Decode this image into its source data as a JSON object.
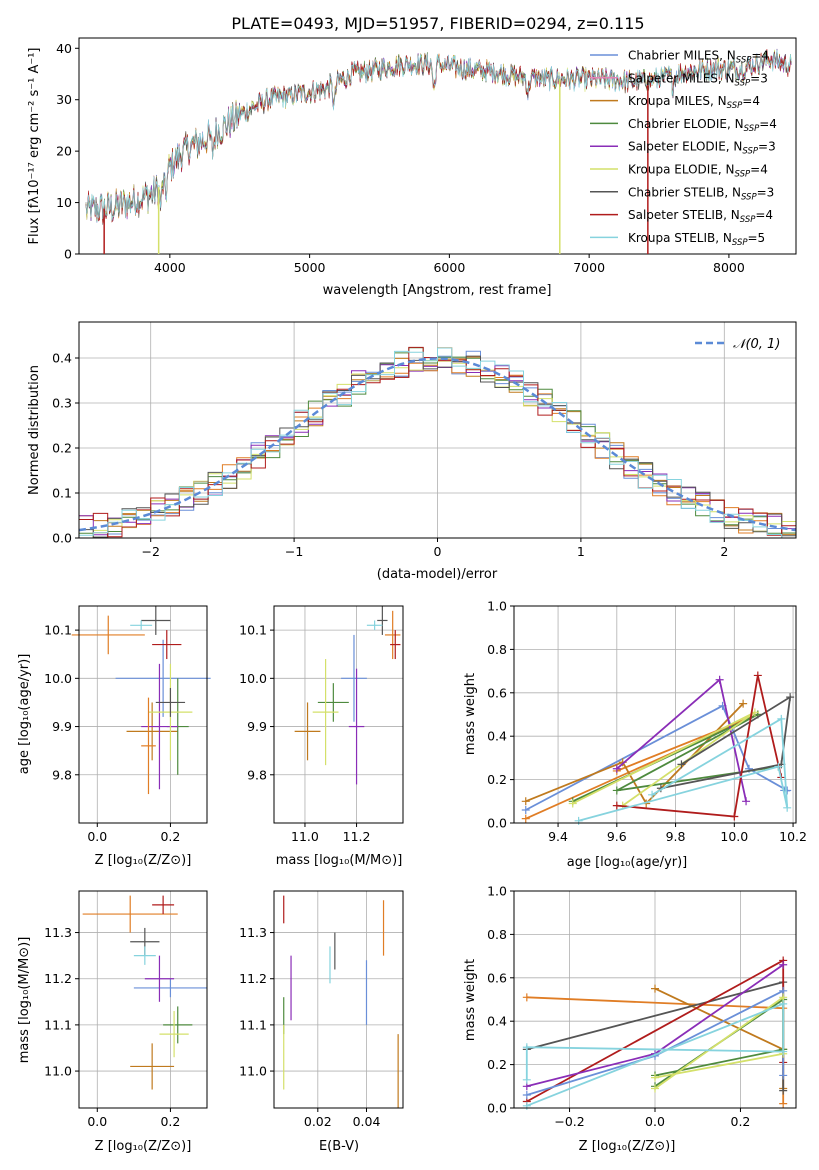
{
  "title": "PLATE=0493, MJD=51957, FIBERID=0294, z=0.115",
  "colors": {
    "Chabrier MILES": "#6a8fd8",
    "Salpeter MILES": "#e07d25",
    "Kroupa MILES": "#c07a1e",
    "Chabrier ELODIE": "#4e8a3e",
    "Salpeter ELODIE": "#8a2db7",
    "Kroupa ELODIE": "#d4e06a",
    "Chabrier STELIB": "#555555",
    "Salpeter STELIB": "#b01c1c",
    "Kroupa STELIB": "#86d3de",
    "pink": "#e484b8",
    "normal": "#5b8ad6"
  },
  "chart_data": [
    {
      "type": "line",
      "panel": "spectrum",
      "title": "PLATE=0493, MJD=51957, FIBERID=0294, z=0.115",
      "xlabel": "wavelength [Angstrom, rest frame]",
      "ylabel": "Flux [fλ10⁻¹⁷ erg cm⁻² s⁻¹ A⁻¹]",
      "xlim": [
        3350,
        8480
      ],
      "ylim": [
        0,
        42
      ],
      "xticks": [
        4000,
        5000,
        6000,
        7000,
        8000
      ],
      "yticks": [
        0,
        10,
        20,
        30,
        40
      ],
      "legend": [
        {
          "label": "Chabrier MILES, N",
          "sub": "SSP",
          "tail": "=4",
          "color": "#6a8fd8"
        },
        {
          "label": "Salpeter MILES, N",
          "sub": "SSP",
          "tail": "=3",
          "color": "#e484b8"
        },
        {
          "label": "Kroupa MILES, N",
          "sub": "SSP",
          "tail": "=4",
          "color": "#c07a1e"
        },
        {
          "label": "Chabrier ELODIE, N",
          "sub": "SSP",
          "tail": "=4",
          "color": "#4e8a3e"
        },
        {
          "label": "Salpeter ELODIE, N",
          "sub": "SSP",
          "tail": "=3",
          "color": "#8a2db7"
        },
        {
          "label": "Kroupa ELODIE, N",
          "sub": "SSP",
          "tail": "=4",
          "color": "#d4e06a"
        },
        {
          "label": "Chabrier STELIB, N",
          "sub": "SSP",
          "tail": "=3",
          "color": "#555555"
        },
        {
          "label": "Salpeter STELIB, N",
          "sub": "SSP",
          "tail": "=4",
          "color": "#b01c1c"
        },
        {
          "label": "Kroupa STELIB, N",
          "sub": "SSP",
          "tail": "=5",
          "color": "#86d3de"
        }
      ],
      "legend_position": "top-right",
      "continuum": {
        "x": [
          3400,
          3600,
          3800,
          3900,
          4000,
          4100,
          4300,
          4500,
          4700,
          4900,
          5100,
          5300,
          5500,
          5700,
          5900,
          6100,
          6300,
          6500,
          6700,
          6900,
          7100,
          7300,
          7500,
          7700,
          7900,
          8100,
          8300,
          8450
        ],
        "y": [
          8.5,
          9,
          11,
          12,
          17,
          20,
          23,
          27,
          30,
          31,
          32,
          35,
          36,
          37,
          37,
          36,
          35.5,
          34.5,
          34,
          34,
          34,
          33.5,
          34,
          35.5,
          36,
          36,
          38,
          36.5
        ]
      },
      "drops": [
        {
          "x": 3530,
          "series": "Salpeter STELIB"
        },
        {
          "x": 3920,
          "series": "Kroupa ELODIE"
        },
        {
          "x": 6790,
          "series": "Kroupa ELODIE"
        },
        {
          "x": 7420,
          "series": "Salpeter STELIB"
        }
      ]
    },
    {
      "type": "line",
      "panel": "residual_histogram",
      "xlabel": "(data-model)/error",
      "ylabel": "Normed distribution",
      "xlim": [
        -2.5,
        2.5
      ],
      "ylim": [
        0,
        0.48
      ],
      "xticks": [
        -2,
        -1,
        0,
        1,
        2
      ],
      "yticks": [
        0.0,
        0.1,
        0.2,
        0.3,
        0.4
      ],
      "grid": true,
      "legend": [
        {
          "label": "𝒩(0, 1)",
          "color": "#5b8ad6"
        }
      ],
      "legend_position": "top-right",
      "bin_width": 0.1,
      "bin_start": -2.5,
      "curve": "normal"
    },
    {
      "type": "scatter",
      "panel": "age_vs_metallicity",
      "xlabel": "Z [log₁₀(Z/Z⊙)]",
      "ylabel": "age  [log₁₀(age/yr)]",
      "xlim": [
        -0.05,
        0.3
      ],
      "ylim": [
        9.7,
        10.15
      ],
      "xticks": [
        0.0,
        0.2
      ],
      "yticks": [
        9.8,
        9.9,
        10.0,
        10.1
      ],
      "grid": true,
      "points": [
        {
          "series": "Chabrier MILES",
          "x": 0.18,
          "xerr": 0.13,
          "y": 10.0,
          "yerr": 0.08
        },
        {
          "series": "Salpeter MILES",
          "x": 0.03,
          "xerr": 0.1,
          "y": 10.09,
          "yerr": 0.04
        },
        {
          "series": "Kroupa MILES",
          "x": 0.15,
          "xerr": 0.07,
          "y": 9.89,
          "yerr": 0.06
        },
        {
          "series": "Chabrier ELODIE",
          "x": 0.22,
          "xerr": 0.03,
          "y": 9.9,
          "yerr": 0.1
        },
        {
          "series": "Salpeter ELODIE",
          "x": 0.17,
          "xerr": 0.05,
          "y": 9.9,
          "yerr": 0.13
        },
        {
          "series": "Kroupa ELODIE",
          "x": 0.2,
          "xerr": 0.06,
          "y": 9.93,
          "yerr": 0.1
        },
        {
          "series": "Chabrier STELIB",
          "x": 0.16,
          "xerr": 0.04,
          "y": 10.12,
          "yerr": 0.03
        },
        {
          "series": "Salpeter STELIB",
          "x": 0.19,
          "xerr": 0.04,
          "y": 10.07,
          "yerr": 0.03
        },
        {
          "series": "Kroupa STELIB",
          "x": 0.12,
          "xerr": 0.03,
          "y": 10.11,
          "yerr": 0.01
        },
        {
          "series": "Salpeter MILES",
          "x": 0.14,
          "xerr": 0.02,
          "y": 9.86,
          "yerr": 0.1
        },
        {
          "series": "Chabrier STELIB",
          "x": 0.2,
          "xerr": 0.04,
          "y": 9.95,
          "yerr": 0.03
        }
      ]
    },
    {
      "type": "scatter",
      "panel": "age_vs_mass",
      "xlabel": "mass [log₁₀(M/M⊙)]",
      "ylabel": "",
      "xlim": [
        10.88,
        11.38
      ],
      "ylim": [
        9.7,
        10.15
      ],
      "xticks": [
        11.0,
        11.2
      ],
      "yticks": [
        9.8,
        9.9,
        10.0,
        10.1
      ],
      "grid": true,
      "points": [
        {
          "series": "Chabrier MILES",
          "x": 11.19,
          "xerr": 0.05,
          "y": 10.0,
          "yerr": 0.09
        },
        {
          "series": "Salpeter MILES",
          "x": 11.34,
          "xerr": 0.03,
          "y": 10.09,
          "yerr": 0.05
        },
        {
          "series": "Kroupa MILES",
          "x": 11.01,
          "xerr": 0.05,
          "y": 9.89,
          "yerr": 0.06
        },
        {
          "series": "Chabrier ELODIE",
          "x": 11.11,
          "xerr": 0.06,
          "y": 9.95,
          "yerr": 0.04
        },
        {
          "series": "Salpeter ELODIE",
          "x": 11.2,
          "xerr": 0.03,
          "y": 9.9,
          "yerr": 0.12
        },
        {
          "series": "Kroupa ELODIE",
          "x": 11.08,
          "xerr": 0.05,
          "y": 9.93,
          "yerr": 0.11
        },
        {
          "series": "Chabrier STELIB",
          "x": 11.3,
          "xerr": 0.02,
          "y": 10.12,
          "yerr": 0.03
        },
        {
          "series": "Salpeter STELIB",
          "x": 11.35,
          "xerr": 0.02,
          "y": 10.07,
          "yerr": 0.03
        },
        {
          "series": "Kroupa STELIB",
          "x": 11.27,
          "xerr": 0.03,
          "y": 10.11,
          "yerr": 0.01
        }
      ]
    },
    {
      "type": "line",
      "panel": "mass_weight_vs_age",
      "xlabel": "age  [log₁₀(age/yr)]",
      "ylabel": "mass weight",
      "xlim": [
        9.25,
        10.21
      ],
      "ylim": [
        0,
        1.0
      ],
      "xticks": [
        9.4,
        9.6,
        9.8,
        10.0,
        10.2
      ],
      "yticks": [
        0.0,
        0.2,
        0.4,
        0.6,
        0.8,
        1.0
      ],
      "grid": true,
      "series": [
        {
          "name": "Chabrier MILES",
          "x": [
            9.29,
            9.96,
            10.05,
            10.18,
            10.17
          ],
          "y": [
            0.06,
            0.54,
            0.25,
            0.15,
            0.15
          ]
        },
        {
          "name": "Salpeter MILES",
          "x": [
            9.29,
            10.08,
            9.6
          ],
          "y": [
            0.02,
            0.5,
            0.24
          ]
        },
        {
          "name": "Kroupa MILES",
          "x": [
            9.29,
            9.62,
            9.7,
            10.03
          ],
          "y": [
            0.1,
            0.28,
            0.09,
            0.55
          ]
        },
        {
          "name": "Chabrier ELODIE",
          "x": [
            9.45,
            10.08,
            9.6,
            10.15
          ],
          "y": [
            0.1,
            0.5,
            0.15,
            0.26
          ]
        },
        {
          "name": "Salpeter ELODIE",
          "x": [
            9.6,
            9.95,
            10.04
          ],
          "y": [
            0.25,
            0.66,
            0.1
          ]
        },
        {
          "name": "Kroupa ELODIE",
          "x": [
            9.45,
            10.07,
            9.62
          ],
          "y": [
            0.09,
            0.51,
            0.08
          ]
        },
        {
          "name": "Chabrier STELIB",
          "x": [
            9.75,
            10.16,
            10.19,
            9.82
          ],
          "y": [
            0.16,
            0.27,
            0.58,
            0.27
          ]
        },
        {
          "name": "Salpeter STELIB",
          "x": [
            9.6,
            10.0,
            10.08,
            10.16
          ],
          "y": [
            0.08,
            0.03,
            0.68,
            0.21
          ]
        },
        {
          "name": "Kroupa STELIB",
          "x": [
            9.47,
            10.15,
            10.18,
            10.16,
            9.72
          ],
          "y": [
            0.01,
            0.26,
            0.07,
            0.48,
            0.13
          ]
        }
      ]
    },
    {
      "type": "scatter",
      "panel": "mass_vs_metallicity",
      "xlabel": "Z [log₁₀(Z/Z⊙)]",
      "ylabel": "mass [log₁₀(M/M⊙)]",
      "xlim": [
        -0.05,
        0.3
      ],
      "ylim": [
        10.92,
        11.39
      ],
      "xticks": [
        0.0,
        0.2
      ],
      "yticks": [
        11.0,
        11.1,
        11.2,
        11.3
      ],
      "grid": true,
      "points": [
        {
          "series": "Chabrier MILES",
          "x": 0.2,
          "xerr": 0.1,
          "y": 11.18,
          "yerr": 0.02
        },
        {
          "series": "Salpeter MILES",
          "x": 0.09,
          "xerr": 0.13,
          "y": 11.34,
          "yerr": 0.04
        },
        {
          "series": "Kroupa MILES",
          "x": 0.15,
          "xerr": 0.06,
          "y": 11.01,
          "yerr": 0.05
        },
        {
          "series": "Chabrier ELODIE",
          "x": 0.22,
          "xerr": 0.04,
          "y": 11.1,
          "yerr": 0.04
        },
        {
          "series": "Salpeter ELODIE",
          "x": 0.17,
          "xerr": 0.04,
          "y": 11.2,
          "yerr": 0.05
        },
        {
          "series": "Kroupa ELODIE",
          "x": 0.21,
          "xerr": 0.04,
          "y": 11.08,
          "yerr": 0.05
        },
        {
          "series": "Chabrier STELIB",
          "x": 0.13,
          "xerr": 0.04,
          "y": 11.28,
          "yerr": 0.03
        },
        {
          "series": "Salpeter STELIB",
          "x": 0.18,
          "xerr": 0.03,
          "y": 11.36,
          "yerr": 0.02
        },
        {
          "series": "Kroupa STELIB",
          "x": 0.13,
          "xerr": 0.03,
          "y": 11.25,
          "yerr": 0.02
        }
      ]
    },
    {
      "type": "scatter",
      "panel": "mass_vs_ebv",
      "xlabel": "E(B-V)",
      "ylabel": "",
      "xlim": [
        0.002,
        0.055
      ],
      "ylim": [
        10.92,
        11.39
      ],
      "xticks": [
        0.02,
        0.04
      ],
      "yticks": [
        11.0,
        11.1,
        11.2,
        11.3
      ],
      "grid": true,
      "points": [
        {
          "series": "Chabrier MILES",
          "x": 0.04,
          "y": 11.17,
          "yerr": 0.07
        },
        {
          "series": "Salpeter MILES",
          "x": 0.047,
          "y": 11.31,
          "yerr": 0.06
        },
        {
          "series": "Kroupa MILES",
          "x": 0.053,
          "y": 11.0,
          "yerr": 0.08
        },
        {
          "series": "Chabrier ELODIE",
          "x": 0.006,
          "y": 11.12,
          "yerr": 0.04
        },
        {
          "series": "Salpeter ELODIE",
          "x": 0.009,
          "y": 11.18,
          "yerr": 0.07
        },
        {
          "series": "Kroupa ELODIE",
          "x": 0.006,
          "y": 11.03,
          "yerr": 0.07
        },
        {
          "series": "Chabrier STELIB",
          "x": 0.027,
          "y": 11.26,
          "yerr": 0.04
        },
        {
          "series": "Salpeter STELIB",
          "x": 0.006,
          "y": 11.35,
          "yerr": 0.03
        },
        {
          "series": "Kroupa STELIB",
          "x": 0.025,
          "y": 11.23,
          "yerr": 0.04
        }
      ]
    },
    {
      "type": "line",
      "panel": "mass_weight_vs_metallicity",
      "xlabel": "Z [log₁₀(Z/Z⊙)]",
      "ylabel": "mass weight",
      "xlim": [
        -0.33,
        0.33
      ],
      "ylim": [
        0,
        1.0
      ],
      "xticks": [
        -0.2,
        0.0,
        0.2
      ],
      "yticks": [
        0.0,
        0.2,
        0.4,
        0.6,
        0.8,
        1.0
      ],
      "grid": true,
      "series": [
        {
          "name": "Salpeter MILES",
          "x": [
            -0.3,
            0.3,
            0.3
          ],
          "y": [
            0.51,
            0.46,
            0.02
          ]
        },
        {
          "name": "Kroupa MILES",
          "x": [
            0.0,
            0.3,
            0.3
          ],
          "y": [
            0.55,
            0.27,
            0.09
          ]
        },
        {
          "name": "Chabrier STELIB",
          "x": [
            -0.3,
            0.3,
            0.3
          ],
          "y": [
            0.27,
            0.58,
            0.08
          ]
        },
        {
          "name": "Salpeter STELIB",
          "x": [
            -0.3,
            0.3,
            0.3
          ],
          "y": [
            0.03,
            0.68,
            0.21
          ]
        },
        {
          "name": "Salpeter ELODIE",
          "x": [
            -0.3,
            0.0,
            0.3
          ],
          "y": [
            0.1,
            0.25,
            0.66
          ]
        },
        {
          "name": "Chabrier MILES",
          "x": [
            -0.3,
            0.0,
            0.3,
            0.3
          ],
          "y": [
            0.06,
            0.24,
            0.54,
            0.15
          ]
        },
        {
          "name": "Chabrier ELODIE",
          "x": [
            0.0,
            0.3,
            0.3,
            0.0
          ],
          "y": [
            0.15,
            0.27,
            0.5,
            0.1
          ]
        },
        {
          "name": "Kroupa ELODIE",
          "x": [
            0.0,
            0.3,
            0.3,
            0.0
          ],
          "y": [
            0.14,
            0.25,
            0.51,
            0.09
          ]
        },
        {
          "name": "Kroupa STELIB",
          "x": [
            -0.3,
            0.3,
            0.3,
            -0.3,
            -0.3
          ],
          "y": [
            0.01,
            0.48,
            0.26,
            0.28,
            0.13
          ]
        }
      ]
    }
  ]
}
